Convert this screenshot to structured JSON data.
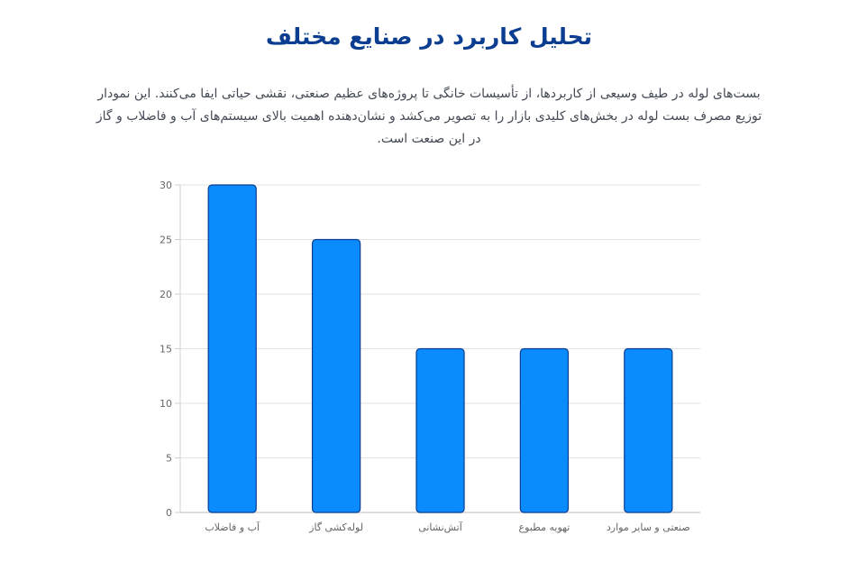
{
  "page": {
    "title": "تحلیل کاربرد در صنایع مختلف",
    "description": "بست‌های لوله در طیف وسیعی از کاربردها، از تأسیسات خانگی تا پروژه‌های عظیم صنعتی، نقشی حیاتی ایفا می‌کنند. این نمودار توزیع مصرف بست لوله در بخش‌های کلیدی بازار را به تصویر می‌کشد و نشان‌دهنده اهمیت بالای سیستم‌های آب و فاضلاب و گاز در این صنعت است."
  },
  "colors": {
    "title": "#0b3d91",
    "bar_fill": "#0a8cff",
    "bar_stroke": "#0b3d91",
    "grid": "#e2e2e2"
  },
  "chart_data": {
    "type": "bar",
    "categories": [
      "آب و فاضلاب",
      "لوله‌کشی گاز",
      "آتش‌نشانی",
      "تهویه مطبوع",
      "صنعتی و سایر موارد"
    ],
    "values": [
      30,
      25,
      15,
      15,
      15
    ],
    "ylim": [
      0,
      30
    ],
    "yticks": [
      0,
      5,
      10,
      15,
      20,
      25,
      30
    ],
    "grid": true,
    "legend": "none"
  }
}
